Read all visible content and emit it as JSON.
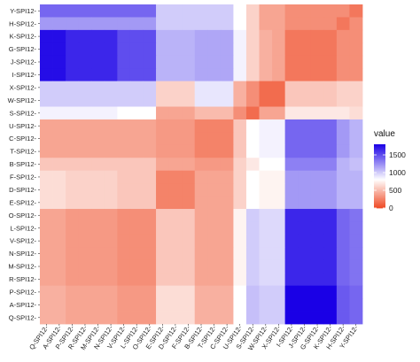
{
  "chart_data": {
    "type": "heatmap",
    "title": "",
    "xlabel": "",
    "ylabel": "",
    "x_categories": [
      "Q-SPI12-",
      "A-SPI12-",
      "P-SPI12-",
      "R-SPI12-",
      "M-SPI12-",
      "N-SPI12-",
      "V-SPI12-",
      "L-SPI12-",
      "O-SPI12-",
      "E-SPI12-",
      "D-SPI12-",
      "F-SPI12-",
      "B-SPI12-",
      "T-SPI12-",
      "C-SPI12-",
      "U-SPI12-",
      "S-SPI12-",
      "W-SPI12-",
      "X-SPI12-",
      "I-SPI12-",
      "J-SPI12-",
      "G-SPI12-",
      "K-SPI12-",
      "H-SPI12-",
      "Y-SPI12-"
    ],
    "y_categories": [
      "Y-SPI12-",
      "H-SPI12-",
      "K-SPI12-",
      "G-SPI12-",
      "J-SPI12-",
      "I-SPI12-",
      "X-SPI12-",
      "W-SPI12-",
      "S-SPI12-",
      "U-SPI12-",
      "C-SPI12-",
      "T-SPI12-",
      "B-SPI12-",
      "F-SPI12-",
      "D-SPI12-",
      "E-SPI12-",
      "O-SPI12-",
      "L-SPI12-",
      "V-SPI12-",
      "N-SPI12-",
      "M-SPI12-",
      "R-SPI12-",
      "P-SPI12-",
      "A-SPI12-",
      "Q-SPI12-"
    ],
    "values": [
      [
        1400,
        1400,
        1400,
        1400,
        1400,
        1400,
        1400,
        1400,
        1400,
        1000,
        1000,
        1000,
        1000,
        1000,
        1000,
        800,
        600,
        400,
        400,
        300,
        300,
        300,
        300,
        300,
        200
      ],
      [
        1200,
        1200,
        1200,
        1200,
        1200,
        1200,
        1200,
        1200,
        1200,
        1000,
        1000,
        1000,
        1000,
        1000,
        1000,
        800,
        600,
        400,
        400,
        300,
        300,
        300,
        300,
        200,
        300
      ],
      [
        1750,
        1750,
        1650,
        1650,
        1650,
        1650,
        1500,
        1500,
        1500,
        1100,
        1100,
        1100,
        1150,
        1150,
        1150,
        850,
        600,
        450,
        400,
        200,
        200,
        200,
        200,
        300,
        300
      ],
      [
        1750,
        1750,
        1650,
        1650,
        1650,
        1650,
        1500,
        1500,
        1500,
        1100,
        1100,
        1100,
        1150,
        1150,
        1150,
        850,
        600,
        450,
        400,
        200,
        200,
        200,
        200,
        300,
        300
      ],
      [
        1750,
        1750,
        1650,
        1650,
        1650,
        1650,
        1500,
        1500,
        1500,
        1100,
        1100,
        1100,
        1150,
        1150,
        1150,
        850,
        600,
        450,
        400,
        200,
        200,
        200,
        200,
        300,
        300
      ],
      [
        1750,
        1750,
        1650,
        1650,
        1650,
        1650,
        1500,
        1500,
        1500,
        1100,
        1100,
        1100,
        1150,
        1150,
        1150,
        850,
        600,
        450,
        400,
        200,
        200,
        200,
        200,
        300,
        300
      ],
      [
        1000,
        1000,
        1000,
        1000,
        1000,
        1000,
        1000,
        1000,
        1000,
        600,
        600,
        600,
        900,
        900,
        900,
        450,
        300,
        150,
        150,
        550,
        550,
        550,
        550,
        600,
        600
      ],
      [
        1000,
        1000,
        1000,
        1000,
        1000,
        1000,
        1000,
        1000,
        1000,
        600,
        600,
        600,
        900,
        900,
        900,
        450,
        300,
        150,
        150,
        550,
        550,
        550,
        550,
        600,
        600
      ],
      [
        850,
        850,
        850,
        850,
        850,
        850,
        800,
        800,
        800,
        400,
        400,
        400,
        500,
        500,
        500,
        300,
        150,
        400,
        400,
        700,
        700,
        700,
        700,
        700,
        650
      ],
      [
        400,
        400,
        400,
        400,
        400,
        400,
        400,
        400,
        400,
        350,
        350,
        350,
        250,
        250,
        250,
        550,
        800,
        850,
        850,
        1400,
        1400,
        1400,
        1400,
        1200,
        1100
      ],
      [
        400,
        400,
        400,
        400,
        400,
        400,
        400,
        400,
        400,
        350,
        350,
        350,
        250,
        250,
        250,
        550,
        800,
        850,
        850,
        1400,
        1400,
        1400,
        1400,
        1200,
        1100
      ],
      [
        400,
        400,
        400,
        400,
        400,
        400,
        400,
        400,
        400,
        350,
        350,
        350,
        250,
        250,
        250,
        550,
        800,
        850,
        850,
        1400,
        1400,
        1400,
        1400,
        1200,
        1100
      ],
      [
        550,
        550,
        550,
        550,
        550,
        550,
        550,
        550,
        550,
        400,
        400,
        400,
        350,
        350,
        350,
        600,
        700,
        800,
        800,
        1300,
        1300,
        1300,
        1300,
        1100,
        1050
      ],
      [
        650,
        650,
        600,
        600,
        600,
        600,
        550,
        550,
        550,
        250,
        250,
        250,
        400,
        400,
        400,
        600,
        800,
        750,
        750,
        1200,
        1200,
        1200,
        1200,
        1100,
        1100
      ],
      [
        650,
        650,
        600,
        600,
        600,
        600,
        550,
        550,
        550,
        250,
        250,
        250,
        400,
        400,
        400,
        600,
        800,
        750,
        750,
        1200,
        1200,
        1200,
        1200,
        1100,
        1100
      ],
      [
        650,
        650,
        600,
        600,
        600,
        600,
        550,
        550,
        550,
        250,
        250,
        250,
        400,
        400,
        400,
        600,
        800,
        750,
        750,
        1200,
        1200,
        1200,
        1200,
        1100,
        1100
      ],
      [
        400,
        400,
        350,
        350,
        350,
        350,
        300,
        300,
        300,
        550,
        550,
        550,
        400,
        400,
        400,
        750,
        1000,
        950,
        950,
        1650,
        1650,
        1650,
        1650,
        1400,
        1350
      ],
      [
        400,
        400,
        350,
        350,
        350,
        350,
        300,
        300,
        300,
        550,
        550,
        550,
        400,
        400,
        400,
        750,
        1000,
        950,
        950,
        1650,
        1650,
        1650,
        1650,
        1400,
        1350
      ],
      [
        400,
        400,
        350,
        350,
        350,
        350,
        300,
        300,
        300,
        550,
        550,
        550,
        400,
        400,
        400,
        750,
        1000,
        950,
        950,
        1650,
        1650,
        1650,
        1650,
        1400,
        1350
      ],
      [
        400,
        400,
        350,
        350,
        350,
        350,
        300,
        300,
        300,
        550,
        550,
        550,
        400,
        400,
        400,
        750,
        1000,
        950,
        950,
        1650,
        1650,
        1650,
        1650,
        1400,
        1350
      ],
      [
        400,
        400,
        350,
        350,
        350,
        350,
        300,
        300,
        300,
        550,
        550,
        550,
        400,
        400,
        400,
        750,
        1000,
        950,
        950,
        1650,
        1650,
        1650,
        1650,
        1400,
        1350
      ],
      [
        400,
        400,
        350,
        350,
        350,
        350,
        300,
        300,
        300,
        550,
        550,
        550,
        400,
        400,
        400,
        750,
        1000,
        950,
        950,
        1650,
        1650,
        1650,
        1650,
        1400,
        1350
      ],
      [
        450,
        450,
        400,
        400,
        400,
        400,
        350,
        350,
        350,
        650,
        650,
        650,
        450,
        450,
        450,
        800,
        1050,
        1000,
        1000,
        1800,
        1800,
        1800,
        1800,
        1450,
        1400
      ],
      [
        450,
        450,
        400,
        400,
        400,
        400,
        350,
        350,
        350,
        650,
        650,
        650,
        450,
        450,
        450,
        800,
        1050,
        1000,
        1000,
        1800,
        1800,
        1800,
        1800,
        1450,
        1400
      ],
      [
        450,
        450,
        400,
        400,
        400,
        400,
        350,
        350,
        350,
        650,
        650,
        650,
        450,
        450,
        450,
        800,
        1050,
        1000,
        1000,
        1800,
        1800,
        1800,
        1800,
        1450,
        1400
      ]
    ],
    "color_scale": {
      "low": "#ef4a25",
      "mid": "#ffffff",
      "high": "#1a00e6",
      "domain": [
        0,
        1800
      ],
      "midpoint": 800
    },
    "legend": {
      "title": "value",
      "ticks": [
        1500,
        1000,
        500,
        0
      ],
      "position": "right"
    },
    "grid": false
  }
}
